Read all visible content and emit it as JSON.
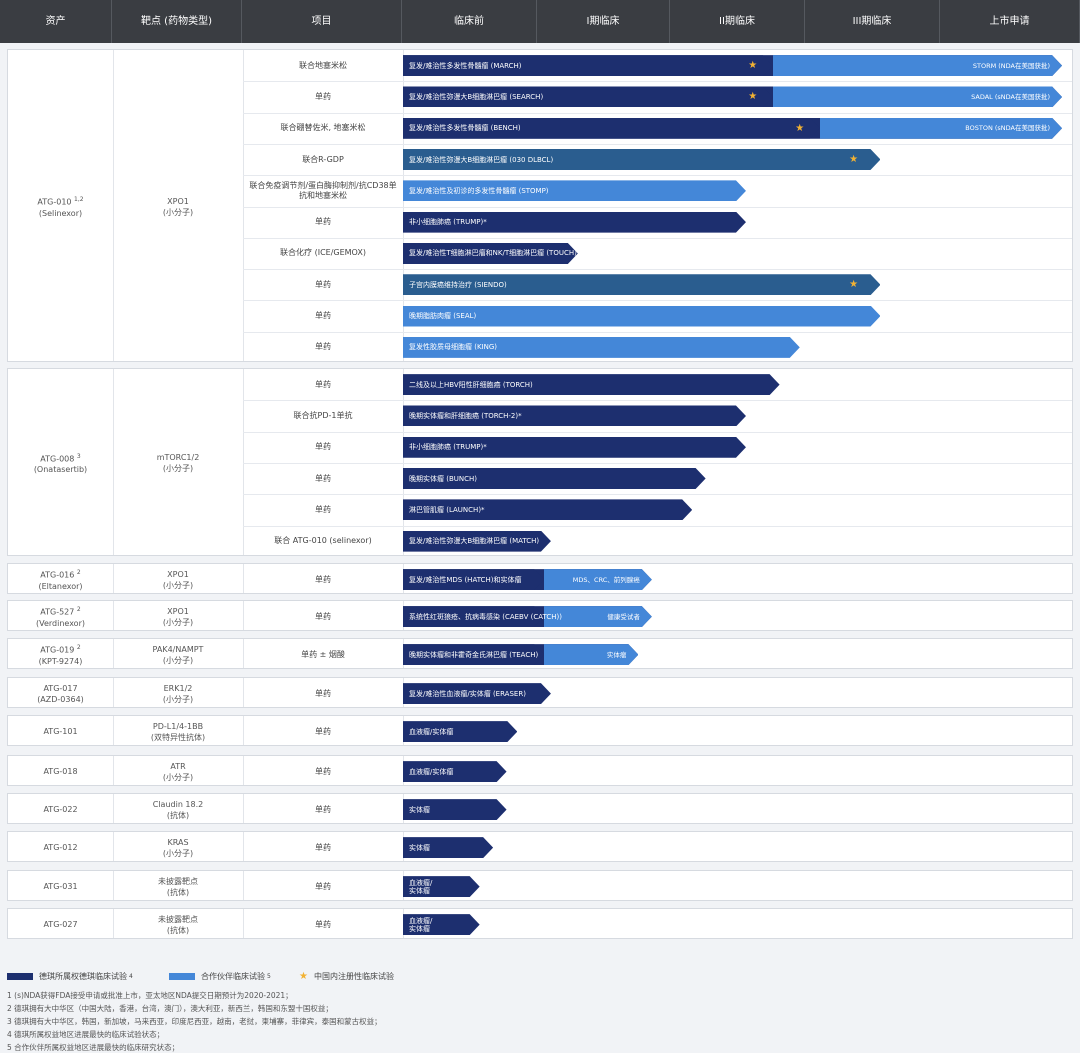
{
  "header": {
    "columns": [
      "资产",
      "靶点 (药物类型)",
      "项目",
      "临床前",
      "I期临床",
      "II期临床",
      "III期临床",
      "上市申请"
    ]
  },
  "groups": [
    {
      "asset": "ATG-010",
      "asset_sup": "1,2",
      "asset_sub": "(Selinexor)",
      "target": "XPO1",
      "target_sub": "(小分子)",
      "rows": [
        {
          "project": "联合地塞米松",
          "label": "复发/难治性多发性骨髓瘤 (MARCH)",
          "stage_end": 4.9,
          "dark_end": 2.75,
          "star": 2.6,
          "right_label": "STORM (NDA在美国获批)"
        },
        {
          "project": "单药",
          "label": "复发/难治性弥漫大B细胞淋巴瘤 (SEARCH)",
          "stage_end": 4.9,
          "dark_end": 2.75,
          "star": 2.6,
          "right_label": "SADAL (sNDA在美国获批)"
        },
        {
          "project": "联合硼替佐米, 地塞米松",
          "label": "复发/难治性多发性骨髓瘤 (BENCH)",
          "stage_end": 4.9,
          "dark_end": 3.1,
          "star": 2.95,
          "right_label": "BOSTON (sNDA在美国获批)"
        },
        {
          "project": "联合R-GDP",
          "label": "复发/难治性弥漫大B细胞淋巴瘤 (030 DLBCL)",
          "stage_end": 3.55,
          "dark_end": null,
          "mid": true,
          "star": 3.35,
          "right_label": ""
        },
        {
          "project": "联合免疫调节剂/蛋白酶抑制剂/抗CD38单抗和地塞米松",
          "label": "复发/难治性及初诊的多发性骨髓瘤 (STOMP)",
          "stage_end": 2.55,
          "dark_end": 0,
          "star": null,
          "right_label": ""
        },
        {
          "project": "单药",
          "label": "非小细胞肺癌 (TRUMP)*",
          "stage_end": 2.55,
          "dark_end": null,
          "star": null,
          "right_label": ""
        },
        {
          "project": "联合化疗 (ICE/GEMOX)",
          "label": "复发/难治性T细胞淋巴瘤和NK/T细胞淋巴瘤 (TOUCH)",
          "stage_end": 1.3,
          "dark_end": null,
          "star": null,
          "right_label": ""
        },
        {
          "project": "单药",
          "label": "子宫内膜癌维持治疗 (SIENDO)",
          "stage_end": 3.55,
          "dark_end": null,
          "mid": true,
          "star": 3.35,
          "right_label": ""
        },
        {
          "project": "单药",
          "label": "晚期脂肪肉瘤 (SEAL)",
          "stage_end": 3.55,
          "dark_end": 0,
          "star": null,
          "right_label": ""
        },
        {
          "project": "单药",
          "label": "复发性胶质母细胞瘤 (KING)",
          "stage_end": 2.95,
          "dark_end": 0,
          "star": null,
          "right_label": ""
        }
      ]
    },
    {
      "asset": "ATG-008",
      "asset_sup": "3",
      "asset_sub": "(Onatasertib)",
      "target": "mTORC1/2",
      "target_sub": "(小分子)",
      "rows": [
        {
          "project": "单药",
          "label": "二线及以上HBV阳性肝细胞癌 (TORCH)",
          "stage_end": 2.8,
          "dark_end": null,
          "star": null,
          "right_label": ""
        },
        {
          "project": "联合抗PD-1单抗",
          "label": "晚期实体瘤和肝细胞癌 (TORCH-2)*",
          "stage_end": 2.55,
          "dark_end": null,
          "star": null,
          "right_label": ""
        },
        {
          "project": "单药",
          "label": "非小细胞肺癌 (TRUMP)*",
          "stage_end": 2.55,
          "dark_end": null,
          "star": null,
          "right_label": ""
        },
        {
          "project": "单药",
          "label": "晚期实体瘤 (BUNCH)",
          "stage_end": 2.25,
          "dark_end": null,
          "star": null,
          "right_label": ""
        },
        {
          "project": "单药",
          "label": "淋巴管肌瘤 (LAUNCH)*",
          "stage_end": 2.15,
          "dark_end": null,
          "star": null,
          "right_label": ""
        },
        {
          "project": "联合 ATG-010 (selinexor)",
          "label": "复发/难治性弥漫大B细胞淋巴瘤 (MATCH)",
          "stage_end": 1.1,
          "dark_end": null,
          "star": null,
          "right_label": ""
        }
      ]
    },
    {
      "asset": "ATG-016",
      "asset_sup": "2",
      "asset_sub": "(Eltanexor)",
      "target": "XPO1",
      "target_sub": "(小分子)",
      "rows": [
        {
          "project": "单药",
          "label": "复发/难治性MDS (HATCH)和实体瘤",
          "stage_end": 1.85,
          "dark_end": 1.05,
          "star": null,
          "right_label": "MDS、CRC、前列腺癌"
        }
      ]
    },
    {
      "asset": "ATG-527",
      "asset_sup": "2",
      "asset_sub": "(Verdinexor)",
      "target": "XPO1",
      "target_sub": "(小分子)",
      "rows": [
        {
          "project": "单药",
          "label": "系统性红斑狼疮、抗病毒感染 (CAEBV (CATCH))",
          "stage_end": 1.85,
          "dark_end": 1.05,
          "star": null,
          "right_label": "健康受试者"
        }
      ]
    },
    {
      "asset": "ATG-019",
      "asset_sup": "2",
      "asset_sub": "(KPT-9274)",
      "target": "PAK4/NAMPT",
      "target_sub": "(小分子)",
      "rows": [
        {
          "project": "单药 ± 烟酸",
          "label": "晚期实体瘤和非霍奇金氏淋巴瘤 (TEACH)",
          "stage_end": 1.75,
          "dark_end": 1.05,
          "star": null,
          "right_label": "实体瘤"
        }
      ]
    },
    {
      "asset": "ATG-017",
      "asset_sup": "",
      "asset_sub": "(AZD-0364)",
      "target": "ERK1/2",
      "target_sub": "(小分子)",
      "rows": [
        {
          "project": "单药",
          "label": "复发/难治性血液瘤/实体瘤 (ERASER)",
          "stage_end": 1.1,
          "dark_end": null,
          "star": null,
          "right_label": ""
        }
      ]
    },
    {
      "asset": "ATG-101",
      "asset_sup": "",
      "asset_sub": "",
      "target": "PD-L1/4-1BB",
      "target_sub": "(双特异性抗体)",
      "rows": [
        {
          "project": "单药",
          "label": "血液瘤/实体瘤",
          "stage_end": 0.85,
          "dark_end": null,
          "star": null,
          "right_label": ""
        }
      ]
    },
    {
      "asset": "ATG-018",
      "asset_sup": "",
      "asset_sub": "",
      "target": "ATR",
      "target_sub": "(小分子)",
      "rows": [
        {
          "project": "单药",
          "label": "血液瘤/实体瘤",
          "stage_end": 0.77,
          "dark_end": null,
          "star": null,
          "right_label": ""
        }
      ]
    },
    {
      "asset": "ATG-022",
      "asset_sup": "",
      "asset_sub": "",
      "target": "Claudin 18.2",
      "target_sub": "(抗体)",
      "rows": [
        {
          "project": "单药",
          "label": "实体瘤",
          "stage_end": 0.77,
          "dark_end": null,
          "star": null,
          "right_label": ""
        }
      ]
    },
    {
      "asset": "ATG-012",
      "asset_sup": "",
      "asset_sub": "",
      "target": "KRAS",
      "target_sub": "(小分子)",
      "rows": [
        {
          "project": "单药",
          "label": "实体瘤",
          "stage_end": 0.67,
          "dark_end": null,
          "star": null,
          "right_label": ""
        }
      ]
    },
    {
      "asset": "ATG-031",
      "asset_sup": "",
      "asset_sub": "",
      "target": "未披露靶点",
      "target_sub": "(抗体)",
      "rows": [
        {
          "project": "单药",
          "label": "血液瘤/\n实体瘤",
          "stage_end": 0.57,
          "dark_end": null,
          "star": null,
          "right_label": ""
        }
      ]
    },
    {
      "asset": "ATG-027",
      "asset_sup": "",
      "asset_sub": "",
      "target": "未披露靶点",
      "target_sub": "(抗体)",
      "rows": [
        {
          "project": "单药",
          "label": "血液瘤/\n实体瘤",
          "stage_end": 0.57,
          "dark_end": null,
          "star": null,
          "right_label": ""
        }
      ]
    }
  ],
  "legend": {
    "items": [
      {
        "label": "德琪所属权德琪临床试验",
        "sup": "4",
        "color": "#1d2f6f",
        "kind": "swatch"
      },
      {
        "label": "合作伙伴临床试验",
        "sup": "5",
        "color": "#4487d8",
        "kind": "swatch"
      },
      {
        "label": "中国内注册性临床试验",
        "sup": "",
        "color": "#f2b233",
        "kind": "star"
      }
    ]
  },
  "notes": [
    "1 (s)NDA获得FDA接受申请或批准上市，亚太地区NDA提交日期预计为2020-2021；",
    "2 德琪拥有大中华区（中国大陆，香港，台湾，澳门），澳大利亚，新西兰，韩国和东盟十国权益；",
    "3 德琪拥有大中华区，韩国，新加坡，马来西亚，印度尼西亚，越南，老挝，柬埔寨，菲律宾，泰国和蒙古权益；",
    "4 德琪所属权益地区进展最快的临床试验状态；",
    "5 合作伙伴所属权益地区进展最快的临床研究状态；"
  ]
}
